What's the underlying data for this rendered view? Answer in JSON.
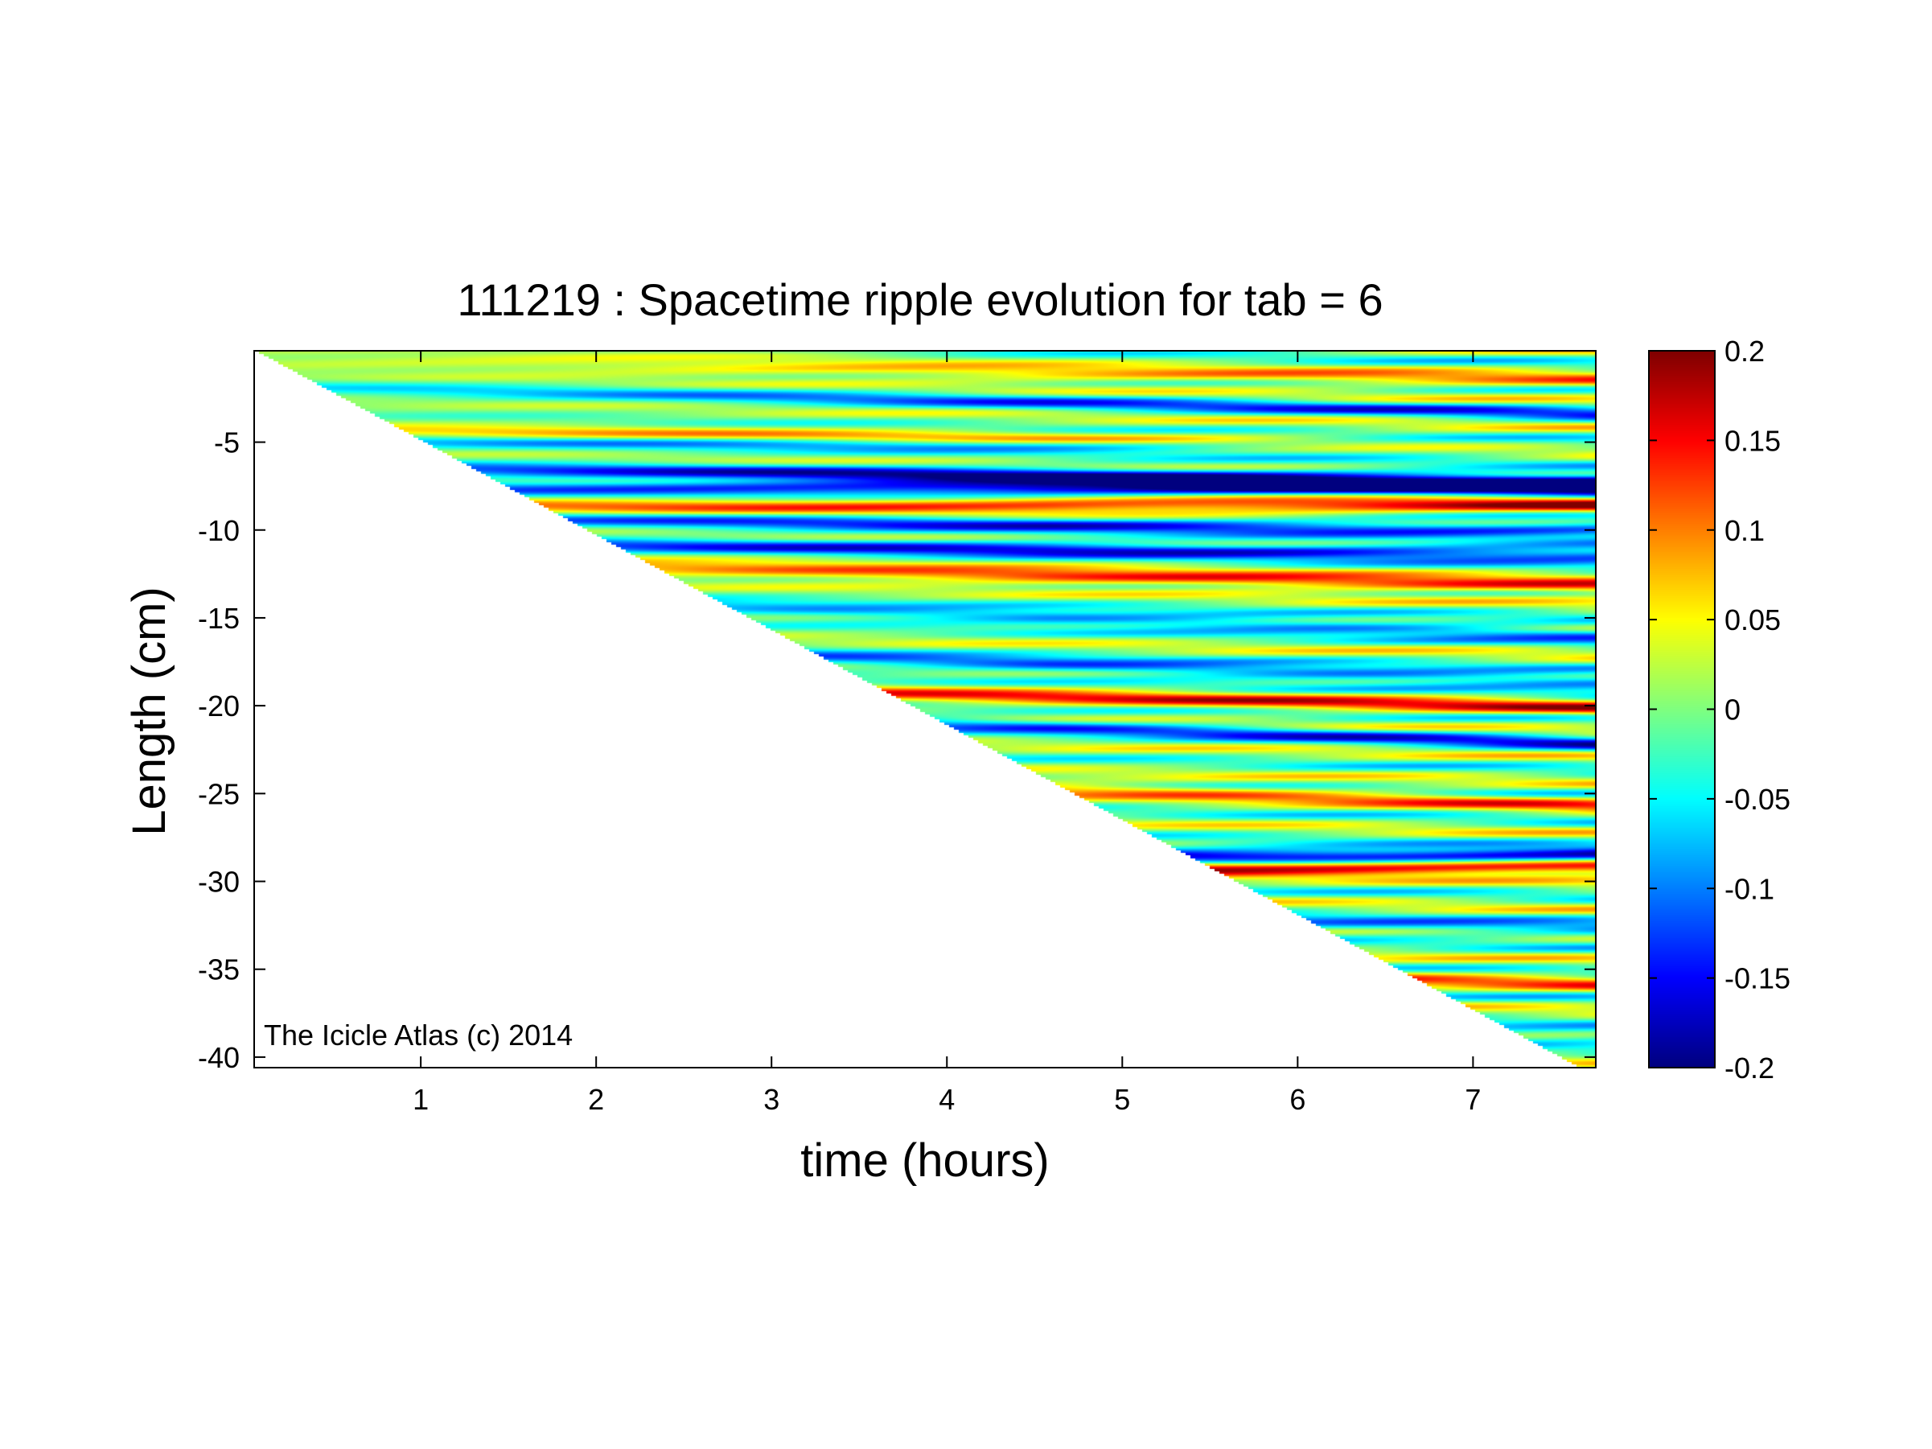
{
  "chart_data": {
    "type": "heatmap",
    "title": "111219 : Spacetime ripple evolution for tab = 6",
    "xlabel": "time (hours)",
    "ylabel": "Length (cm)",
    "xlim": [
      0.05,
      7.7
    ],
    "ylim": [
      -40.6,
      0.2
    ],
    "x_ticks": [
      {
        "value": 1,
        "label": "1"
      },
      {
        "value": 2,
        "label": "2"
      },
      {
        "value": 3,
        "label": "3"
      },
      {
        "value": 4,
        "label": "4"
      },
      {
        "value": 5,
        "label": "5"
      },
      {
        "value": 6,
        "label": "6"
      },
      {
        "value": 7,
        "label": "7"
      }
    ],
    "y_ticks": [
      {
        "value": -5,
        "label": "-5"
      },
      {
        "value": -10,
        "label": "-10"
      },
      {
        "value": -15,
        "label": "-15"
      },
      {
        "value": -20,
        "label": "-20"
      },
      {
        "value": -25,
        "label": "-25"
      },
      {
        "value": -30,
        "label": "-30"
      },
      {
        "value": -35,
        "label": "-35"
      },
      {
        "value": -40,
        "label": "-40"
      }
    ],
    "colorbar": {
      "min": -0.2,
      "max": 0.2,
      "colormap": "jet",
      "ticks": [
        {
          "value": 0.2,
          "label": "0.2"
        },
        {
          "value": 0.15,
          "label": "0.15"
        },
        {
          "value": 0.1,
          "label": "0.1"
        },
        {
          "value": 0.05,
          "label": "0.05"
        },
        {
          "value": 0,
          "label": "0"
        },
        {
          "value": -0.05,
          "label": "-0.05"
        },
        {
          "value": -0.1,
          "label": "-0.1"
        },
        {
          "value": -0.15,
          "label": "-0.15"
        },
        {
          "value": -0.2,
          "label": "-0.2"
        }
      ]
    },
    "data_boundary": {
      "description_of_valid_region": "data exists where Length is above the icicle tip, which grows linearly with time",
      "tip_length_at_start": 0.2,
      "tip_length_at_end": -40.6,
      "time_at_start": 0.05,
      "time_at_end": 7.6
    },
    "ripple_bands": [
      {
        "y0": -1.0,
        "slope": -0.15,
        "amp": 0.09
      },
      {
        "y0": -2.6,
        "slope": -0.2,
        "amp": -0.1
      },
      {
        "y0": -4.8,
        "slope": -0.1,
        "amp": 0.18
      },
      {
        "y0": -5.0,
        "slope": -0.05,
        "amp": -0.19
      },
      {
        "y0": -6.8,
        "slope": -0.1,
        "amp": -0.2
      },
      {
        "y0": -7.6,
        "slope": 0.0,
        "amp": -0.2
      },
      {
        "y0": -8.6,
        "slope": 0.0,
        "amp": 0.16
      },
      {
        "y0": -9.6,
        "slope": -0.1,
        "amp": -0.15
      },
      {
        "y0": -11.0,
        "slope": -0.1,
        "amp": -0.17
      },
      {
        "y0": -12.5,
        "slope": -0.2,
        "amp": 0.15
      },
      {
        "y0": -14.8,
        "slope": -0.3,
        "amp": -0.12
      },
      {
        "y0": -17.5,
        "slope": -0.3,
        "amp": -0.13
      },
      {
        "y0": -19.4,
        "slope": -0.2,
        "amp": 0.13
      },
      {
        "y0": -21.0,
        "slope": -0.3,
        "amp": -0.12
      },
      {
        "y0": -24.5,
        "slope": -0.3,
        "amp": 0.1
      },
      {
        "y0": -28.5,
        "slope": 0.0,
        "amp": -0.2
      },
      {
        "y0": -29.2,
        "slope": 0.0,
        "amp": 0.19
      },
      {
        "y0": -32.0,
        "slope": -0.2,
        "amp": -0.1
      },
      {
        "y0": -35.0,
        "slope": -0.2,
        "amp": 0.09
      },
      {
        "y0": -38.0,
        "slope": -0.2,
        "amp": -0.08
      }
    ],
    "watermark": "The Icicle Atlas (c) 2014"
  }
}
